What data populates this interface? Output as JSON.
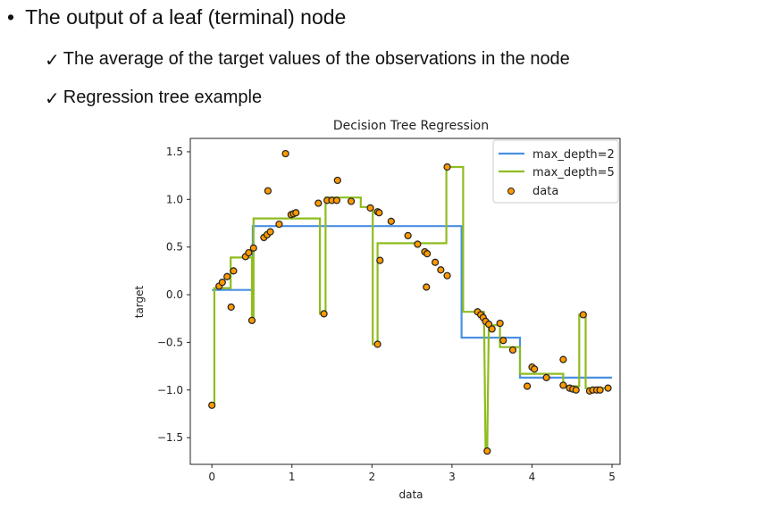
{
  "slide": {
    "bullet_symbol": "•",
    "bullet_text": "The output of a leaf (terminal) node",
    "check_symbol": "✓",
    "sub_items": [
      "The average of the target values of the observations in the node",
      "Regression tree example"
    ]
  },
  "chart_data": {
    "type": "line",
    "title": "Decision Tree Regression",
    "xlabel": "data",
    "ylabel": "target",
    "xlim": [
      -0.27,
      5.1
    ],
    "ylim": [
      -1.78,
      1.64
    ],
    "xticks": [
      0,
      1,
      2,
      3,
      4,
      5
    ],
    "xtick_labels": [
      "0",
      "1",
      "2",
      "3",
      "4",
      "5"
    ],
    "yticks": [
      1.5,
      1.0,
      0.5,
      0.0,
      -0.5,
      -1.0,
      -1.5
    ],
    "ytick_labels": [
      "1.5",
      "1.0",
      "0.5",
      "0.0",
      "−0.5",
      "−1.0",
      "−1.5"
    ],
    "grid": false,
    "legend_position": "top-right",
    "colors": {
      "depth2": "#4a90e2",
      "depth5": "#8fbc1f",
      "data_fill": "#ff9900",
      "data_edge": "#222222"
    },
    "series": [
      {
        "name": "max_depth=2",
        "kind": "step",
        "x": [
          0,
          0.51,
          0.51,
          3.12,
          3.12,
          3.85,
          3.85,
          5.0
        ],
        "y": [
          0.05,
          0.05,
          0.72,
          0.72,
          -0.45,
          -0.45,
          -0.87,
          -0.87
        ]
      },
      {
        "name": "max_depth=5",
        "kind": "step",
        "x": [
          0,
          0.03,
          0.03,
          0.235,
          0.235,
          0.5,
          0.5,
          0.52,
          0.52,
          1.35,
          1.35,
          1.42,
          1.42,
          1.86,
          1.86,
          2.01,
          2.01,
          2.07,
          2.07,
          2.93,
          2.93,
          3.14,
          3.14,
          3.4,
          3.42,
          3.44,
          3.46,
          3.6,
          3.6,
          3.85,
          3.85,
          4.39,
          4.39,
          4.59,
          4.59,
          4.67,
          4.67,
          4.95
        ],
        "y": [
          -1.16,
          -1.16,
          0.07,
          0.07,
          0.39,
          0.39,
          -0.27,
          -0.27,
          0.8,
          0.8,
          -0.2,
          -0.2,
          1.02,
          1.02,
          0.92,
          0.92,
          -0.52,
          -0.52,
          0.54,
          0.54,
          1.34,
          1.34,
          -0.18,
          -0.18,
          -1.64,
          -1.64,
          -0.32,
          -0.32,
          -0.55,
          -0.55,
          -0.83,
          -0.83,
          -0.96,
          -0.96,
          -0.21,
          -0.21,
          -0.98,
          -0.98
        ]
      },
      {
        "name": "data",
        "kind": "scatter",
        "x": [
          0.0,
          0.09,
          0.13,
          0.19,
          0.27,
          0.24,
          0.42,
          0.46,
          0.52,
          0.5,
          0.65,
          0.69,
          0.73,
          0.7,
          0.84,
          0.92,
          0.99,
          1.02,
          1.05,
          1.33,
          1.4,
          1.44,
          1.5,
          1.56,
          1.57,
          1.74,
          1.98,
          2.07,
          2.09,
          2.07,
          2.1,
          2.24,
          2.45,
          2.57,
          2.66,
          2.69,
          2.79,
          2.86,
          2.94,
          2.68,
          2.94,
          3.32,
          3.36,
          3.39,
          3.42,
          3.46,
          3.5,
          3.6,
          3.44,
          3.64,
          3.76,
          4.0,
          4.03,
          3.94,
          4.18,
          4.39,
          4.39,
          4.47,
          4.51,
          4.55,
          4.64,
          4.72,
          4.76,
          4.81,
          4.85,
          4.95
        ],
        "y": [
          -1.16,
          0.09,
          0.13,
          0.19,
          0.25,
          -0.13,
          0.4,
          0.44,
          0.49,
          -0.27,
          0.6,
          0.63,
          0.66,
          1.09,
          0.74,
          1.48,
          0.84,
          0.85,
          0.86,
          0.96,
          -0.2,
          0.99,
          0.99,
          0.99,
          1.2,
          0.98,
          0.91,
          0.87,
          0.86,
          -0.52,
          0.36,
          0.77,
          0.62,
          0.53,
          0.45,
          0.43,
          0.34,
          0.26,
          0.2,
          0.08,
          1.34,
          -0.18,
          -0.21,
          -0.24,
          -0.28,
          -0.31,
          -0.36,
          -0.3,
          -1.64,
          -0.48,
          -0.58,
          -0.76,
          -0.78,
          -0.96,
          -0.87,
          -0.68,
          -0.95,
          -0.98,
          -0.99,
          -1.0,
          -0.21,
          -1.01,
          -1.0,
          -1.0,
          -1.0,
          -0.98
        ]
      }
    ]
  }
}
